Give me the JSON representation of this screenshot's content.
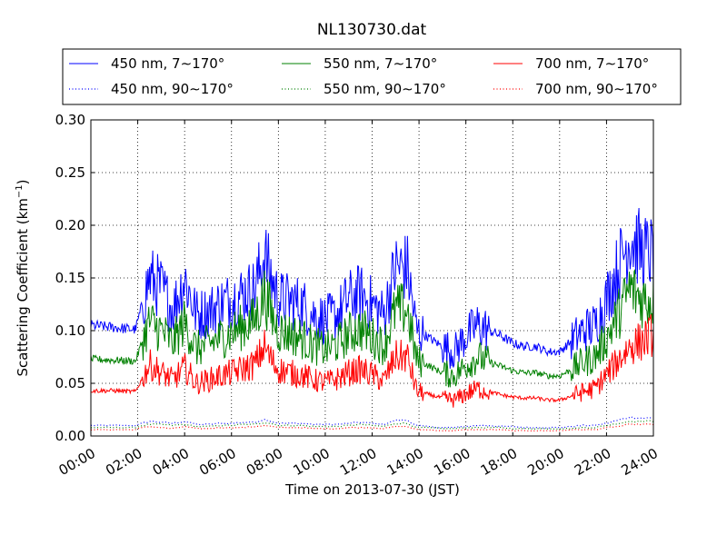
{
  "chart_data": {
    "type": "line",
    "title": "NL130730.dat",
    "xlabel": "Time on 2013-07-30 (JST)",
    "ylabel_main": "Scattering Coefficient (km",
    "ylabel_sup": "−1",
    "ylabel_end": ")",
    "xlim": [
      "00:00",
      "24:00"
    ],
    "ylim": [
      0.0,
      0.3
    ],
    "x_tick_labels": [
      "00:00",
      "02:00",
      "04:00",
      "06:00",
      "08:00",
      "10:00",
      "12:00",
      "14:00",
      "16:00",
      "18:00",
      "20:00",
      "22:00",
      "24:00"
    ],
    "y_tick_labels": [
      "0.00",
      "0.05",
      "0.10",
      "0.15",
      "0.20",
      "0.25",
      "0.30"
    ],
    "y_ticks": [
      0.0,
      0.05,
      0.1,
      0.15,
      0.2,
      0.25,
      0.3
    ],
    "grid": true,
    "legend_position": "top, above plot",
    "x_hours": [
      0,
      1,
      1.9,
      2.2,
      2.5,
      3,
      3.5,
      4,
      4.5,
      5,
      5.5,
      6,
      6.5,
      7,
      7.4,
      7.7,
      8,
      8.5,
      9,
      9.5,
      10,
      10.5,
      11,
      11.5,
      12,
      12.5,
      13,
      13.5,
      13.9,
      14.3,
      15,
      15.5,
      16,
      16.5,
      17,
      17.5,
      18,
      18.5,
      19,
      19.5,
      20,
      20.5,
      21,
      21.5,
      22,
      22.5,
      23,
      23.5,
      24
    ],
    "series": [
      {
        "name": "450 nm, 7∼170°",
        "color": "#0000ff",
        "style": "solid",
        "values": [
          0.105,
          0.103,
          0.101,
          0.125,
          0.15,
          0.14,
          0.12,
          0.15,
          0.115,
          0.118,
          0.125,
          0.13,
          0.135,
          0.14,
          0.172,
          0.15,
          0.13,
          0.128,
          0.125,
          0.115,
          0.11,
          0.115,
          0.13,
          0.135,
          0.125,
          0.115,
          0.16,
          0.16,
          0.1,
          0.095,
          0.085,
          0.08,
          0.095,
          0.105,
          0.1,
          0.095,
          0.088,
          0.085,
          0.085,
          0.08,
          0.08,
          0.09,
          0.1,
          0.105,
          0.13,
          0.16,
          0.19,
          0.175,
          0.172
        ]
      },
      {
        "name": "550 nm, 7∼170°",
        "color": "#008000",
        "style": "solid",
        "values": [
          0.073,
          0.072,
          0.071,
          0.09,
          0.108,
          0.1,
          0.088,
          0.108,
          0.082,
          0.087,
          0.093,
          0.098,
          0.104,
          0.11,
          0.135,
          0.115,
          0.1,
          0.097,
          0.093,
          0.086,
          0.082,
          0.087,
          0.097,
          0.102,
          0.094,
          0.085,
          0.12,
          0.12,
          0.072,
          0.068,
          0.06,
          0.057,
          0.067,
          0.075,
          0.07,
          0.066,
          0.062,
          0.06,
          0.06,
          0.057,
          0.057,
          0.063,
          0.07,
          0.075,
          0.093,
          0.115,
          0.14,
          0.13,
          0.13
        ]
      },
      {
        "name": "700 nm, 7∼170°",
        "color": "#ff0000",
        "style": "solid",
        "values": [
          0.043,
          0.043,
          0.042,
          0.055,
          0.068,
          0.06,
          0.053,
          0.065,
          0.05,
          0.053,
          0.057,
          0.06,
          0.064,
          0.068,
          0.085,
          0.072,
          0.063,
          0.06,
          0.058,
          0.053,
          0.051,
          0.054,
          0.06,
          0.063,
          0.058,
          0.052,
          0.075,
          0.075,
          0.043,
          0.04,
          0.036,
          0.034,
          0.04,
          0.045,
          0.042,
          0.039,
          0.037,
          0.036,
          0.036,
          0.034,
          0.034,
          0.038,
          0.042,
          0.045,
          0.058,
          0.072,
          0.085,
          0.09,
          0.097
        ]
      },
      {
        "name": "450 nm, 90∼170°",
        "color": "#0000ff",
        "style": "dotted",
        "values": [
          0.01,
          0.01,
          0.01,
          0.012,
          0.014,
          0.013,
          0.012,
          0.014,
          0.011,
          0.011,
          0.012,
          0.012,
          0.013,
          0.013,
          0.016,
          0.014,
          0.012,
          0.012,
          0.012,
          0.011,
          0.011,
          0.011,
          0.012,
          0.013,
          0.012,
          0.011,
          0.015,
          0.015,
          0.01,
          0.009,
          0.008,
          0.008,
          0.009,
          0.01,
          0.01,
          0.009,
          0.009,
          0.008,
          0.008,
          0.008,
          0.008,
          0.009,
          0.01,
          0.01,
          0.012,
          0.015,
          0.018,
          0.017,
          0.017
        ]
      },
      {
        "name": "550 nm, 90∼170°",
        "color": "#008000",
        "style": "dotted",
        "values": [
          0.008,
          0.008,
          0.008,
          0.01,
          0.011,
          0.011,
          0.01,
          0.011,
          0.009,
          0.009,
          0.01,
          0.01,
          0.011,
          0.011,
          0.013,
          0.012,
          0.01,
          0.01,
          0.01,
          0.009,
          0.009,
          0.009,
          0.01,
          0.011,
          0.01,
          0.009,
          0.012,
          0.012,
          0.008,
          0.008,
          0.007,
          0.007,
          0.008,
          0.008,
          0.008,
          0.008,
          0.007,
          0.007,
          0.007,
          0.007,
          0.007,
          0.007,
          0.008,
          0.008,
          0.01,
          0.012,
          0.014,
          0.014,
          0.014
        ]
      },
      {
        "name": "700 nm, 90∼170°",
        "color": "#ff0000",
        "style": "dotted",
        "values": [
          0.006,
          0.006,
          0.006,
          0.008,
          0.009,
          0.008,
          0.007,
          0.009,
          0.007,
          0.007,
          0.008,
          0.008,
          0.008,
          0.009,
          0.01,
          0.009,
          0.008,
          0.008,
          0.008,
          0.007,
          0.007,
          0.007,
          0.008,
          0.008,
          0.008,
          0.007,
          0.009,
          0.009,
          0.006,
          0.006,
          0.005,
          0.005,
          0.006,
          0.006,
          0.006,
          0.006,
          0.005,
          0.005,
          0.005,
          0.005,
          0.005,
          0.006,
          0.006,
          0.006,
          0.008,
          0.009,
          0.011,
          0.011,
          0.011
        ]
      }
    ],
    "legend_order": [
      0,
      3,
      1,
      4,
      2,
      5
    ]
  }
}
